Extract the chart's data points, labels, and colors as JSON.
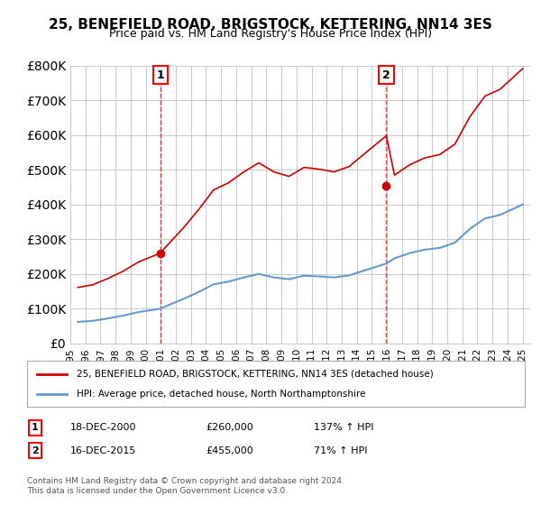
{
  "title": "25, BENEFIELD ROAD, BRIGSTOCK, KETTERING, NN14 3ES",
  "subtitle": "Price paid vs. HM Land Registry's House Price Index (HPI)",
  "legend_line1": "25, BENEFIELD ROAD, BRIGSTOCK, KETTERING, NN14 3ES (detached house)",
  "legend_line2": "HPI: Average price, detached house, North Northamptonshire",
  "footnote": "Contains HM Land Registry data © Crown copyright and database right 2024.\nThis data is licensed under the Open Government Licence v3.0.",
  "table": [
    {
      "num": 1,
      "date": "18-DEC-2000",
      "price": "£260,000",
      "hpi": "137% ↑ HPI"
    },
    {
      "num": 2,
      "date": "16-DEC-2015",
      "price": "£455,000",
      "hpi": "71% ↑ HPI"
    }
  ],
  "sale1_year": 2000.96,
  "sale1_price": 260000,
  "sale2_year": 2015.96,
  "sale2_price": 455000,
  "red_color": "#cc0000",
  "blue_color": "#6699cc",
  "background_color": "#ffffff",
  "grid_color": "#cccccc",
  "ylim": [
    0,
    800000
  ],
  "xlim_start": 1995.0,
  "xlim_end": 2025.5
}
